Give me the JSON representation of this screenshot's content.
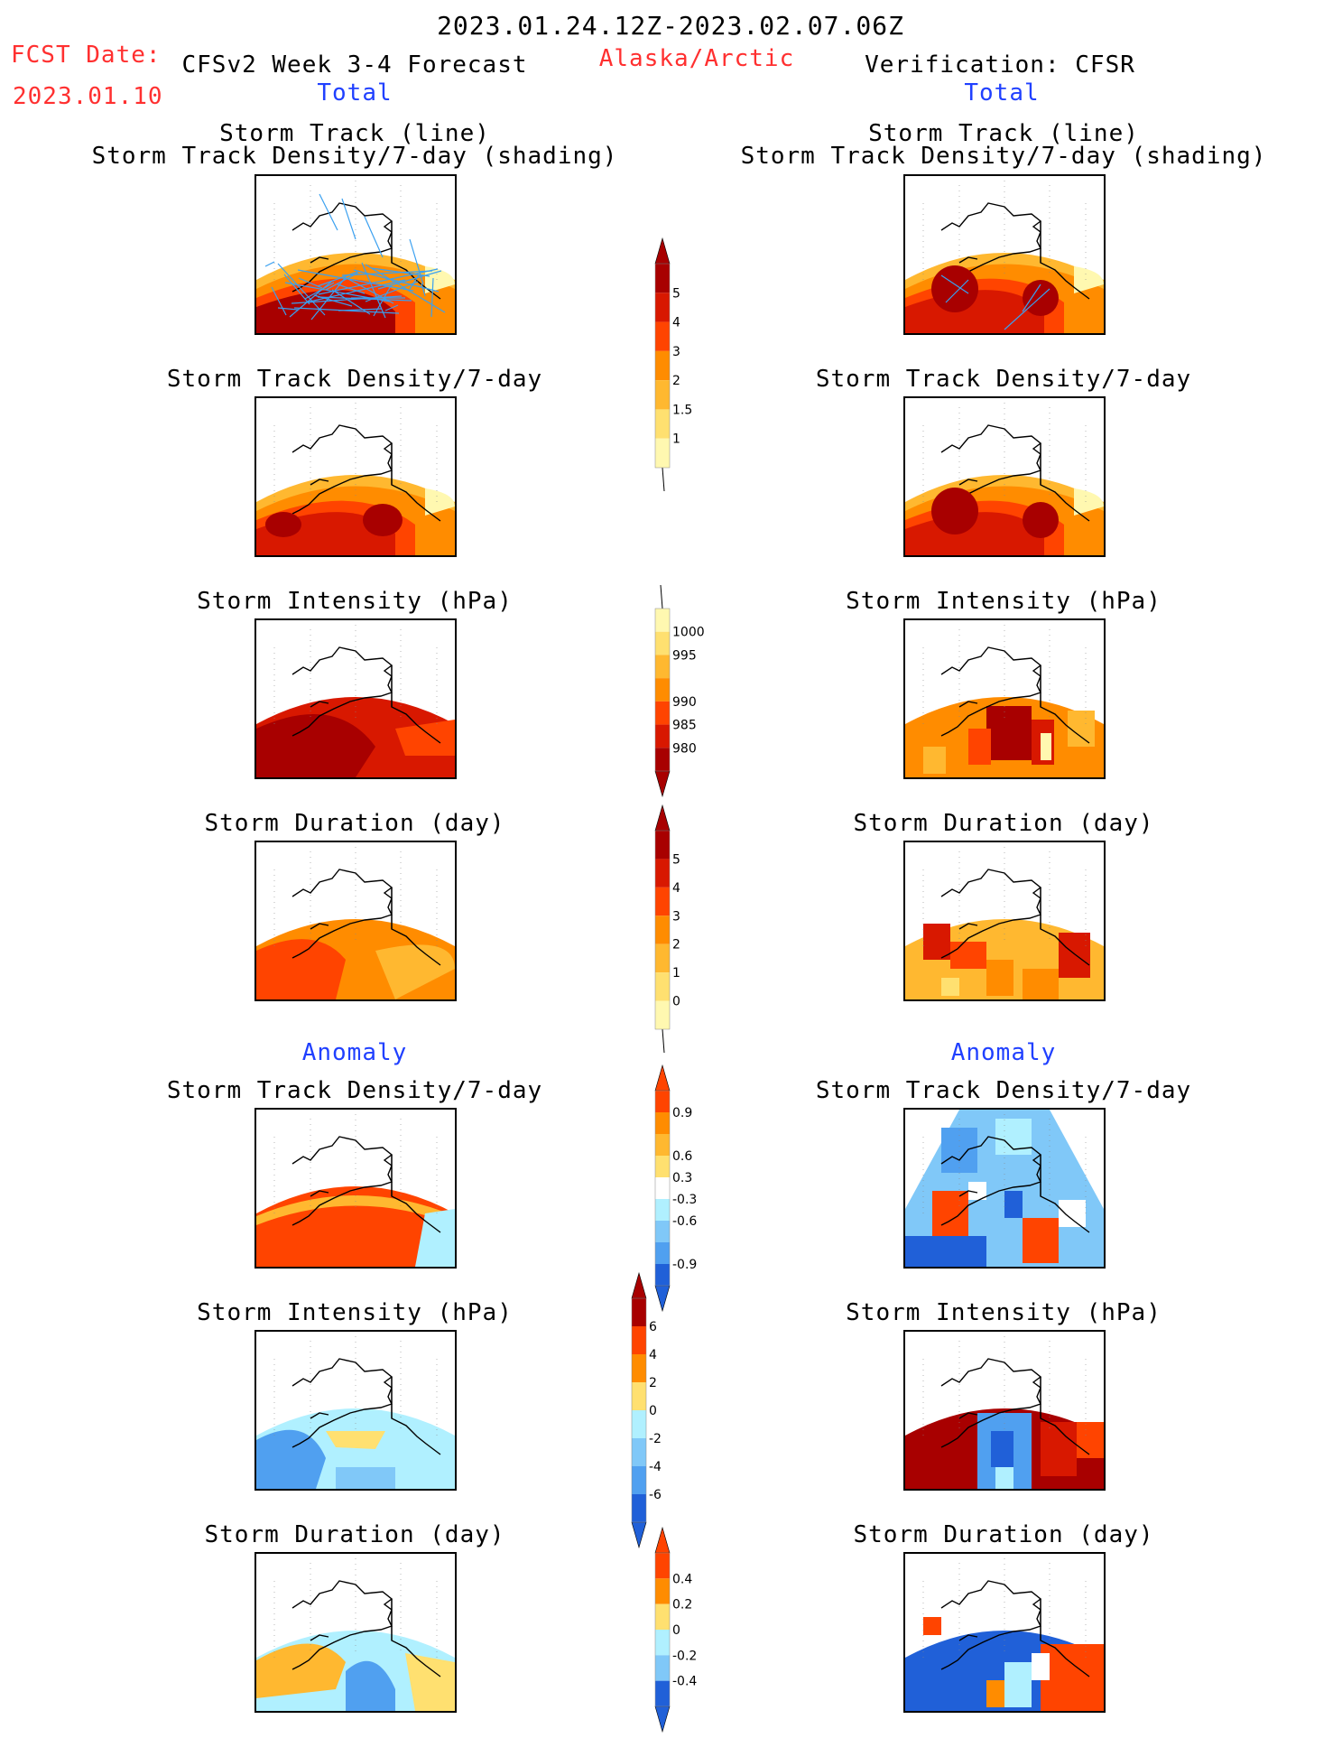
{
  "header": {
    "period": "2023.01.24.12Z-2023.02.07.06Z",
    "fcst_label": "FCST Date:",
    "fcst_date": "2023.01.10",
    "forecast_title": "CFSv2 Week 3-4 Forecast",
    "region": "Alaska/Arctic",
    "verification_title": "Verification: CFSR",
    "total_left": "Total",
    "total_right": "Total",
    "anomaly_left": "Anomaly",
    "anomaly_right": "Anomaly"
  },
  "titles": {
    "storm_track_line": "Storm Track (line)",
    "density_shading": "Storm Track Density/7-day (shading)",
    "density": "Storm Track Density/7-day",
    "intensity": "Storm Intensity (hPa)",
    "duration": "Storm Duration (day)"
  },
  "colorbars": {
    "density_total": [
      "5",
      "4",
      "3",
      "2",
      "1.5",
      "1"
    ],
    "intensity_total": [
      "1000",
      "995",
      "990",
      "985",
      "980"
    ],
    "duration_total": [
      "5",
      "4",
      "3",
      "2",
      "1",
      "0"
    ],
    "density_anomaly": [
      "0.9",
      "0.6",
      "0.3",
      "-0.3",
      "-0.6",
      "-0.9"
    ],
    "intensity_anomaly": [
      "6",
      "4",
      "2",
      "0",
      "-2",
      "-4",
      "-6"
    ],
    "duration_anomaly": [
      "0.4",
      "0.2",
      "0",
      "-0.2",
      "-0.4"
    ]
  },
  "colors": {
    "warm": [
      "#fff8b0",
      "#ffe070",
      "#ffb830",
      "#ff8c00",
      "#ff4400",
      "#d81800",
      "#a80000"
    ],
    "cool": [
      "#b0f0ff",
      "#80c8f8",
      "#50a0f0",
      "#2060d8"
    ],
    "track_line": "#3aa0f0"
  }
}
